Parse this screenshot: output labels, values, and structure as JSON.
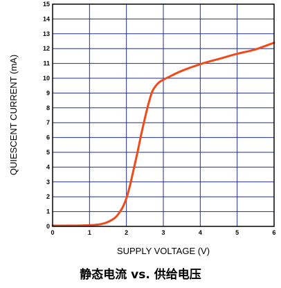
{
  "chart_data": {
    "type": "line",
    "title": "静态电流  vs. 供给电压",
    "xlabel": "SUPPLY VOLTAGE (V)",
    "ylabel": "QUIESCENT CURRENT (mA)",
    "xlim": [
      0,
      6
    ],
    "ylim": [
      0,
      15
    ],
    "xticks": [
      0,
      1,
      2,
      3,
      4,
      5,
      6
    ],
    "yticks": [
      0,
      1,
      2,
      3,
      4,
      5,
      6,
      7,
      8,
      9,
      10,
      11,
      12,
      13,
      14,
      15
    ],
    "grid": true,
    "series": [
      {
        "color": "#f04a1a",
        "x": [
          0,
          0.5,
          1.0,
          1.3,
          1.5,
          1.7,
          1.8,
          1.9,
          2.0,
          2.1,
          2.2,
          2.3,
          2.4,
          2.5,
          2.6,
          2.7,
          2.8,
          2.9,
          3.0,
          3.2,
          3.5,
          4.0,
          4.5,
          5.0,
          5.5,
          6.0
        ],
        "y": [
          0.05,
          0.05,
          0.08,
          0.15,
          0.3,
          0.6,
          0.9,
          1.3,
          1.9,
          2.8,
          3.9,
          5.0,
          6.2,
          7.3,
          8.3,
          9.1,
          9.5,
          9.75,
          9.9,
          10.15,
          10.5,
          10.95,
          11.3,
          11.65,
          11.95,
          12.4
        ]
      }
    ]
  }
}
